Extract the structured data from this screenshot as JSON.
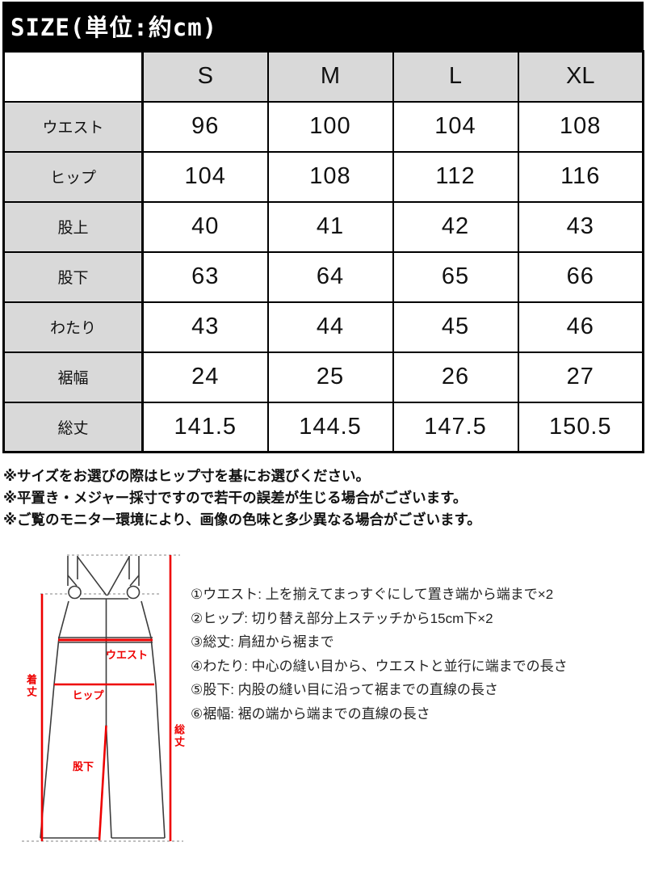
{
  "title_bar": {
    "title": "SIZE(単位:約cm)"
  },
  "colors": {
    "title_bar_bg": "#000000",
    "table_header_bg": "#d9d9d9",
    "accent_red": "#ee0000"
  },
  "size_table": {
    "corner": "",
    "columns": [
      "S",
      "M",
      "L",
      "XL"
    ],
    "rows": [
      {
        "label": "ウエスト",
        "values": [
          "96",
          "100",
          "104",
          "108"
        ]
      },
      {
        "label": "ヒップ",
        "values": [
          "104",
          "108",
          "112",
          "116"
        ]
      },
      {
        "label": "股上",
        "values": [
          "40",
          "41",
          "42",
          "43"
        ]
      },
      {
        "label": "股下",
        "values": [
          "63",
          "64",
          "65",
          "66"
        ]
      },
      {
        "label": "わたり",
        "values": [
          "43",
          "44",
          "45",
          "46"
        ]
      },
      {
        "label": "裾幅",
        "values": [
          "24",
          "25",
          "26",
          "27"
        ]
      },
      {
        "label": "総丈",
        "values": [
          "141.5",
          "144.5",
          "147.5",
          "150.5"
        ]
      }
    ]
  },
  "notes": [
    "※サイズをお選びの際はヒップ寸を基にお選びください。",
    "※平置き・メジャー採寸ですので若干の誤差が生じる場合がございます。",
    "※ご覧のモニター環境により、画像の色味と多少異なる場合がございます。"
  ],
  "diagram": {
    "labels": {
      "waist": "ウエスト",
      "hip": "ヒップ",
      "inseam": "股下",
      "wear_length": "着丈",
      "total_length": "総丈"
    }
  },
  "measure_notes": [
    "①ウエスト: 上を揃えてまっすぐにして置き端から端まで×2",
    "②ヒップ: 切り替え部分上ステッチから15cm下×2",
    "③総丈: 肩紐から裾まで",
    "④わたり: 中心の縫い目から、ウエストと並行に端までの長さ",
    "⑤股下: 内股の縫い目に沿って裾までの直線の長さ",
    "⑥裾幅: 裾の端から端までの直線の長さ"
  ]
}
